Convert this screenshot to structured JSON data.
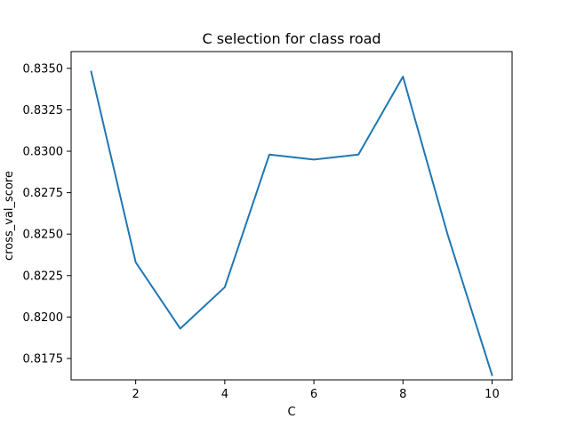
{
  "chart_data": {
    "type": "line",
    "title": "C selection for class road",
    "xlabel": "C",
    "ylabel": "cross_val_score",
    "xlim": [
      0.55,
      10.45
    ],
    "ylim": [
      0.81621,
      0.83601
    ],
    "xticks": [
      2,
      4,
      6,
      8,
      10
    ],
    "yticks": [
      0.8175,
      0.82,
      0.8225,
      0.825,
      0.8275,
      0.83,
      0.8325,
      0.835
    ],
    "ytick_labels": [
      "0.8175",
      "0.8200",
      "0.8225",
      "0.8250",
      "0.8275",
      "0.8300",
      "0.8325",
      "0.8350"
    ],
    "grid": false,
    "series": [
      {
        "color": "#1f77b4",
        "x": [
          1,
          2,
          3,
          4,
          5,
          6,
          7,
          8,
          9,
          10
        ],
        "y": [
          0.8348,
          0.8233,
          0.8193,
          0.8218,
          0.8298,
          0.8295,
          0.8298,
          0.8345,
          0.825,
          0.8165
        ]
      }
    ]
  }
}
